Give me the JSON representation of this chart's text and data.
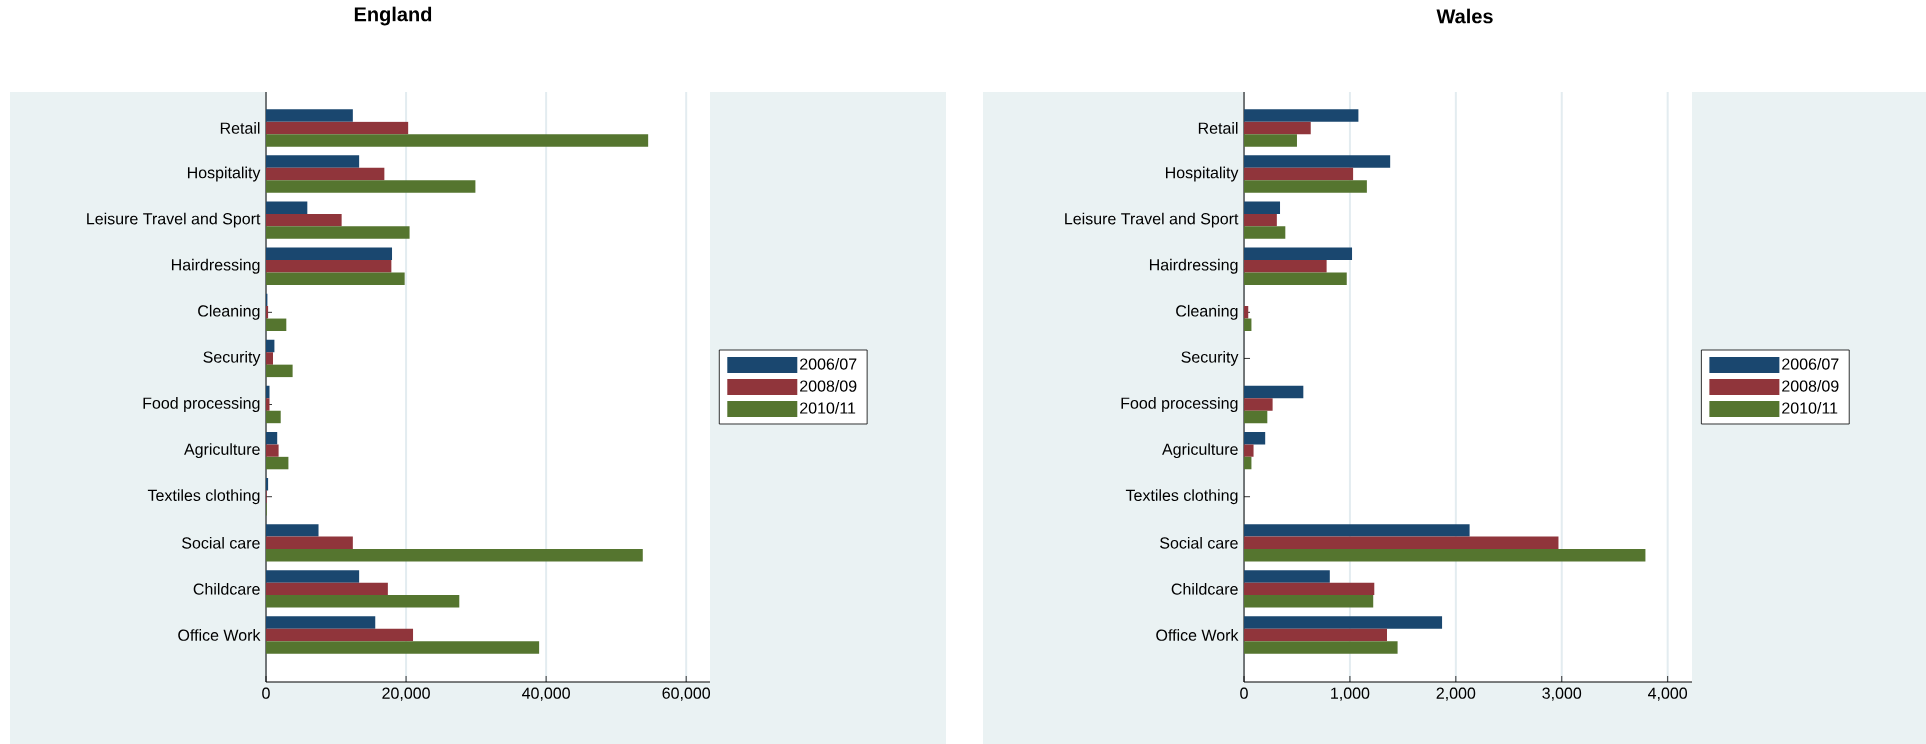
{
  "chart_data": [
    {
      "type": "bar",
      "orientation": "horizontal",
      "title": "England",
      "categories": [
        "Retail",
        "Hospitality",
        "Leisure Travel and Sport",
        "Hairdressing",
        "Cleaning",
        "Security",
        "Food processing",
        "Agriculture",
        "Textiles clothing",
        "Social care",
        "Childcare",
        "Office Work"
      ],
      "series": [
        {
          "name": "2006/07",
          "color": "#1a476f",
          "values": [
            12400,
            13300,
            5900,
            18000,
            200,
            1200,
            500,
            1600,
            300,
            7500,
            13300,
            15600
          ]
        },
        {
          "name": "2008/09",
          "color": "#90353b",
          "values": [
            20300,
            16900,
            10800,
            17900,
            300,
            1000,
            500,
            1800,
            100,
            12400,
            17400,
            21000
          ]
        },
        {
          "name": "2010/11",
          "color": "#55752f",
          "values": [
            54600,
            29900,
            20500,
            19800,
            2900,
            3800,
            2100,
            3200,
            100,
            53800,
            27600,
            39000
          ]
        }
      ],
      "xlim": [
        0,
        63400
      ],
      "xticks": [
        0,
        {
          "value": 20000,
          "label": "20,000"
        },
        {
          "value": 40000,
          "label": "40,000"
        },
        {
          "value": 60000,
          "label": "60,000"
        }
      ],
      "grid": "x",
      "legend": "right"
    },
    {
      "type": "bar",
      "orientation": "horizontal",
      "title": "Wales",
      "categories": [
        "Retail",
        "Hospitality",
        "Leisure Travel and Sport",
        "Hairdressing",
        "Cleaning",
        "Security",
        "Food processing",
        "Agriculture",
        "Textiles clothing",
        "Social care",
        "Childcare",
        "Office Work"
      ],
      "series": [
        {
          "name": "2006/07",
          "color": "#1a476f",
          "values": [
            1080,
            1380,
            340,
            1020,
            null,
            null,
            560,
            200,
            0,
            2130,
            810,
            1870
          ]
        },
        {
          "name": "2008/09",
          "color": "#90353b",
          "values": [
            630,
            1030,
            310,
            780,
            40,
            null,
            270,
            90,
            0,
            2970,
            1230,
            1350
          ]
        },
        {
          "name": "2010/11",
          "color": "#55752f",
          "values": [
            500,
            1160,
            390,
            970,
            70,
            null,
            220,
            70,
            0,
            3790,
            1220,
            1450
          ]
        }
      ],
      "xlim": [
        0,
        4230
      ],
      "xticks": [
        0,
        {
          "value": 1000,
          "label": "1,000"
        },
        {
          "value": 2000,
          "label": "2,000"
        },
        {
          "value": 3000,
          "label": "3,000"
        },
        {
          "value": 4000,
          "label": "4,000"
        }
      ],
      "grid": "x",
      "legend": "right"
    }
  ]
}
